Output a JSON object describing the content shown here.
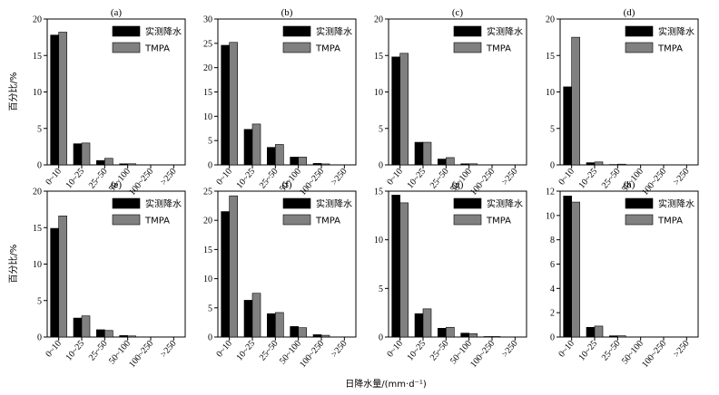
{
  "figure": {
    "ylabel": "百分比/%",
    "xlabel": "日降水量/(mm·d⁻¹)"
  },
  "legend": [
    "实测降水",
    "TMPA"
  ],
  "colors": {
    "observed": "#000000",
    "tmpa": "#808080"
  },
  "chart_data": [
    {
      "type": "bar",
      "title": "(a)",
      "ylim": [
        0,
        20
      ],
      "yticks": [
        0,
        5,
        10,
        15,
        20
      ],
      "categories": [
        "0~10",
        "10~25",
        "25~50",
        "50~100",
        "100~250",
        ">250"
      ],
      "series": [
        {
          "name": "实测降水",
          "values": [
            17.8,
            2.9,
            0.6,
            0.15,
            0.0,
            0.0
          ]
        },
        {
          "name": "TMPA",
          "values": [
            18.2,
            3.0,
            0.9,
            0.15,
            0.0,
            0.0
          ]
        }
      ]
    },
    {
      "type": "bar",
      "title": "(b)",
      "ylim": [
        0,
        30
      ],
      "yticks": [
        0,
        5,
        10,
        15,
        20,
        25,
        30
      ],
      "categories": [
        "0~10",
        "10~25",
        "25~50",
        "50~100",
        "100~250",
        ">250"
      ],
      "series": [
        {
          "name": "实测降水",
          "values": [
            24.6,
            7.3,
            3.6,
            1.6,
            0.3,
            0.0
          ]
        },
        {
          "name": "TMPA",
          "values": [
            25.2,
            8.4,
            4.2,
            1.6,
            0.2,
            0.0
          ]
        }
      ]
    },
    {
      "type": "bar",
      "title": "(c)",
      "ylim": [
        0,
        20
      ],
      "yticks": [
        0,
        5,
        10,
        15,
        20
      ],
      "categories": [
        "0~10",
        "10~25",
        "25~50",
        "50~100",
        "100~250",
        ">250"
      ],
      "series": [
        {
          "name": "实测降水",
          "values": [
            14.8,
            3.1,
            0.8,
            0.15,
            0.0,
            0.0
          ]
        },
        {
          "name": "TMPA",
          "values": [
            15.3,
            3.1,
            1.0,
            0.15,
            0.0,
            0.0
          ]
        }
      ]
    },
    {
      "type": "bar",
      "title": "(d)",
      "ylim": [
        0,
        20
      ],
      "yticks": [
        0,
        5,
        10,
        15,
        20
      ],
      "categories": [
        "0~10",
        "10~25",
        "25~50",
        "50~100",
        "100~250",
        ">250"
      ],
      "series": [
        {
          "name": "实测降水",
          "values": [
            10.7,
            0.3,
            0.05,
            0.0,
            0.0,
            0.0
          ]
        },
        {
          "name": "TMPA",
          "values": [
            17.5,
            0.4,
            0.1,
            0.0,
            0.0,
            0.0
          ]
        }
      ]
    },
    {
      "type": "bar",
      "title": "(e)",
      "ylim": [
        0,
        20
      ],
      "yticks": [
        0,
        5,
        10,
        15,
        20
      ],
      "categories": [
        "0~10",
        "10~25",
        "25~50",
        "50~100",
        "100~250",
        ">250"
      ],
      "series": [
        {
          "name": "实测降水",
          "values": [
            14.9,
            2.6,
            1.0,
            0.2,
            0.0,
            0.0
          ]
        },
        {
          "name": "TMPA",
          "values": [
            16.6,
            2.9,
            0.9,
            0.15,
            0.0,
            0.0
          ]
        }
      ]
    },
    {
      "type": "bar",
      "title": "(f)",
      "ylim": [
        0,
        25
      ],
      "yticks": [
        0,
        5,
        10,
        15,
        20,
        25
      ],
      "categories": [
        "0~10",
        "10~25",
        "25~50",
        "50~100",
        "100~250",
        ">250"
      ],
      "series": [
        {
          "name": "实测降水",
          "values": [
            21.5,
            6.3,
            4.0,
            1.8,
            0.4,
            0.0
          ]
        },
        {
          "name": "TMPA",
          "values": [
            24.2,
            7.5,
            4.2,
            1.6,
            0.3,
            0.0
          ]
        }
      ]
    },
    {
      "type": "bar",
      "title": "(g)",
      "ylim": [
        0,
        15
      ],
      "yticks": [
        0,
        5,
        10,
        15
      ],
      "categories": [
        "0~10",
        "10~25",
        "25~50",
        "50~100",
        "100~250",
        ">250"
      ],
      "series": [
        {
          "name": "实测降水",
          "values": [
            14.6,
            2.4,
            0.9,
            0.4,
            0.05,
            0.0
          ]
        },
        {
          "name": "TMPA",
          "values": [
            13.8,
            2.9,
            1.0,
            0.35,
            0.05,
            0.0
          ]
        }
      ]
    },
    {
      "type": "bar",
      "title": "(h)",
      "ylim": [
        0,
        12
      ],
      "yticks": [
        0,
        2,
        4,
        6,
        8,
        10,
        12
      ],
      "categories": [
        "0~10",
        "10~25",
        "25~50",
        "50~100",
        "100~250",
        ">250"
      ],
      "series": [
        {
          "name": "实测降水",
          "values": [
            11.6,
            0.8,
            0.1,
            0.0,
            0.0,
            0.0
          ]
        },
        {
          "name": "TMPA",
          "values": [
            11.1,
            0.9,
            0.1,
            0.0,
            0.0,
            0.0
          ]
        }
      ]
    }
  ]
}
